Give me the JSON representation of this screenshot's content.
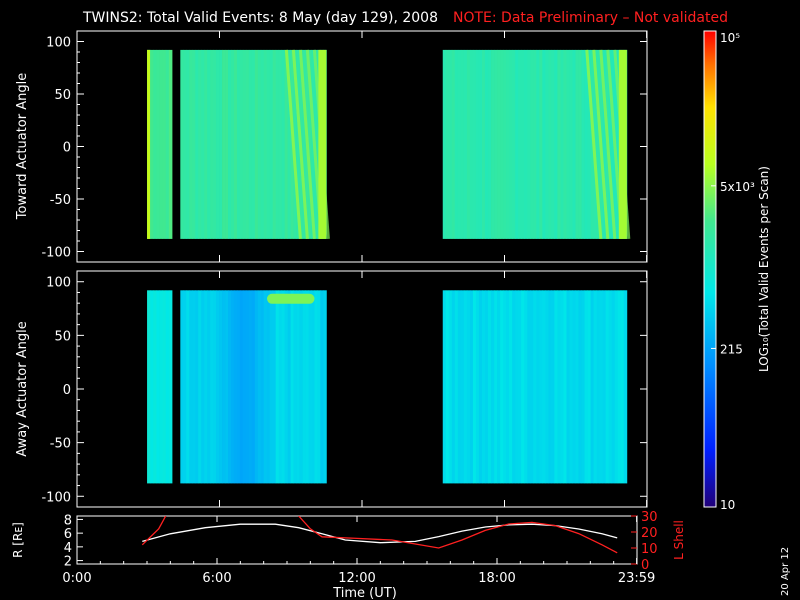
{
  "header": {
    "title": "TWINS2: Total Valid Events:  8 May (day 129), 2008",
    "note": "NOTE: Data Preliminary – Not validated"
  },
  "side_date": "20 Apr 12",
  "colors": {
    "background": "#000000",
    "foreground": "#ffffff",
    "note": "#ff2020",
    "lshell": "#ff2020"
  },
  "colorbar": {
    "label": "LOG₁₀(Total Valid Events per Scan)",
    "ticks": [
      {
        "value": 10,
        "label": "10"
      },
      {
        "value": 215,
        "label": "215"
      },
      {
        "value": 5000,
        "label": "5x10³"
      },
      {
        "value": 100000,
        "label": "10⁵"
      }
    ],
    "range": [
      10,
      100000
    ],
    "scale": "log"
  },
  "chart_data": [
    {
      "type": "heatmap",
      "ylabel": "Toward Actuator Angle",
      "xlim": [
        0,
        24
      ],
      "ylim": [
        -110,
        110
      ],
      "yticks": [
        -100,
        -50,
        0,
        50,
        100
      ],
      "angle_range": [
        -88,
        92
      ],
      "blocks": [
        {
          "start": 2.95,
          "end": 4.0,
          "level": 0.6,
          "edge": 0.74
        },
        {
          "start": 4.35,
          "end": 10.5,
          "level": 0.57,
          "bright_end": 0.7
        },
        {
          "start": 15.4,
          "end": 23.15,
          "level": 0.55,
          "bright_end": 0.7
        }
      ]
    },
    {
      "type": "heatmap",
      "ylabel": "Away Actuator Angle",
      "xlim": [
        0,
        24
      ],
      "ylim": [
        -110,
        110
      ],
      "yticks": [
        -100,
        -50,
        0,
        50,
        100
      ],
      "angle_range": [
        -88,
        92
      ],
      "blocks": [
        {
          "start": 2.95,
          "end": 4.0,
          "level": 0.47
        },
        {
          "start": 4.35,
          "end": 10.5,
          "level": 0.42,
          "low_mid": 0.34
        },
        {
          "start": 15.4,
          "end": 23.15,
          "level": 0.43
        }
      ],
      "hotspot": {
        "start": 8.0,
        "end": 10.0,
        "angle": 85,
        "level": 0.66
      }
    },
    {
      "type": "line",
      "xlabel": "Time (UT)",
      "ylabel": "R [Rᴇ]",
      "y2label": "L Shell",
      "xlim": [
        0,
        24
      ],
      "xticks": [
        {
          "value": 0,
          "label": "0:00"
        },
        {
          "value": 6,
          "label": "6:00"
        },
        {
          "value": 12,
          "label": "12:00"
        },
        {
          "value": 18,
          "label": "18:00"
        },
        {
          "value": 23.983,
          "label": "23:59"
        }
      ],
      "ylim": [
        1.5,
        8.5
      ],
      "yticks": [
        2,
        4,
        6,
        8
      ],
      "y2lim": [
        0,
        30
      ],
      "y2ticks": [
        0,
        10,
        20,
        30
      ],
      "series": [
        {
          "axis": "left",
          "x": [
            2.8,
            4.0,
            5.5,
            7.0,
            8.5,
            9.5,
            10.5,
            11.5,
            13.0,
            14.5,
            15.5,
            16.5,
            17.5,
            18.5,
            19.5,
            20.5,
            21.5,
            22.5,
            23.15
          ],
          "y": [
            4.8,
            5.9,
            6.8,
            7.3,
            7.3,
            6.8,
            5.9,
            5.0,
            4.6,
            4.8,
            5.5,
            6.3,
            6.9,
            7.2,
            7.3,
            7.1,
            6.6,
            5.9,
            5.3
          ]
        },
        {
          "axis": "right",
          "x": [
            2.8,
            3.5,
            3.8
          ],
          "y": [
            12,
            22,
            30
          ]
        },
        {
          "axis": "right",
          "x": [
            9.5,
            10.0,
            10.5,
            12.0,
            13.5,
            15.5,
            16.5,
            17.5,
            18.5,
            19.5,
            20.5,
            21.5,
            22.5,
            23.15
          ],
          "y": [
            30,
            22,
            17,
            16,
            15,
            10,
            15,
            21,
            25,
            26,
            24,
            19,
            12,
            7
          ]
        }
      ]
    }
  ]
}
